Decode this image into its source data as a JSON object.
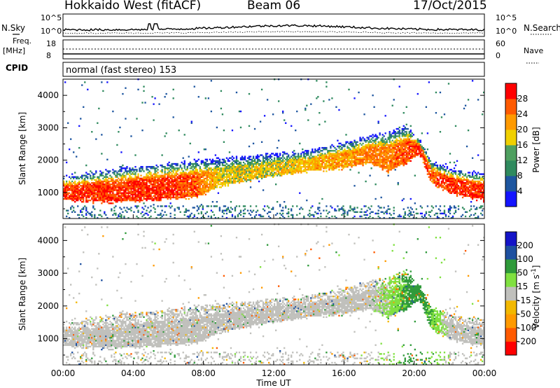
{
  "header": {
    "station": "Hokkaido West (fitACF)",
    "beam": "Beam 06",
    "date": "17/Oct/2015"
  },
  "top_strip": {
    "nsky_label": "N.Sky",
    "nsearch_label": "N.Search",
    "noise_left_ticks": [
      "10^5",
      "10^0"
    ],
    "noise_right_ticks": [
      "10^5",
      "10^0"
    ],
    "freq_label": "Freq.",
    "freq_unit": "[MHz]",
    "freq_ticks": [
      "18",
      "8"
    ],
    "nave_label": "Nave",
    "nave_ticks": [
      "60",
      "0"
    ],
    "cpid_label": "CPID",
    "cpid_text": "normal (fast stereo) 153"
  },
  "colors": {
    "power_scale": [
      "#1414ff",
      "#1e56a0",
      "#2f8a5e",
      "#4fa060",
      "#f0d000",
      "#ff9a00",
      "#ff5a00",
      "#ff0000"
    ],
    "velocity_scale": [
      "#ff0000",
      "#ff5a00",
      "#ff9a00",
      "#f2b800",
      "#c0c0bc",
      "#80e040",
      "#2f9a3a",
      "#1e50a0",
      "#1414c8"
    ]
  },
  "chart_data": [
    {
      "type": "heatmap",
      "title": "Power",
      "xlabel": "",
      "ylabel": "Slant Range [km]",
      "x_ticks": [
        "00:00",
        "04:00",
        "08:00",
        "12:00",
        "16:00",
        "20:00",
        "00:00"
      ],
      "xlim_hours": [
        0,
        24
      ],
      "y_ticks": [
        1000,
        2000,
        3000,
        4000
      ],
      "ylim": [
        200,
        4500
      ],
      "colorbar": {
        "label": "Power [dB]",
        "ticks": [
          "4",
          "8",
          "12",
          "16",
          "20",
          "24",
          "28"
        ],
        "range": [
          0,
          32
        ]
      },
      "band_profile": {
        "time_hours": [
          0,
          2,
          4,
          6,
          7.6,
          9,
          12,
          14,
          16,
          17.5,
          18.5,
          19.6,
          20.3,
          21,
          22,
          23,
          24
        ],
        "bottom_km": [
          750,
          700,
          720,
          800,
          850,
          1200,
          1500,
          1650,
          1750,
          1900,
          1650,
          1900,
          2200,
          1300,
          1000,
          850,
          750
        ],
        "top_km": [
          1450,
          1600,
          1750,
          1850,
          1950,
          2000,
          2150,
          2250,
          2500,
          2700,
          2800,
          3000,
          2600,
          1900,
          1700,
          1600,
          1550
        ],
        "peak_power_db": [
          28,
          28,
          28,
          28,
          26,
          18,
          18,
          20,
          22,
          24,
          24,
          26,
          28,
          26,
          28,
          28,
          28
        ]
      }
    },
    {
      "type": "heatmap",
      "title": "Velocity",
      "xlabel": "Time UT",
      "ylabel": "Slant Range [km]",
      "x_ticks": [
        "00:00",
        "04:00",
        "08:00",
        "12:00",
        "16:00",
        "20:00",
        "00:00"
      ],
      "xlim_hours": [
        0,
        24
      ],
      "y_ticks": [
        1000,
        2000,
        3000,
        4000
      ],
      "ylim": [
        200,
        4500
      ],
      "colorbar": {
        "label": "Velocity [m s^-1]",
        "ticks": [
          "200",
          "100",
          "50",
          "15",
          "-15",
          "-50",
          "-100",
          "-200"
        ],
        "range": [
          -250,
          250
        ]
      },
      "dominant_velocity_ms": [
        0,
        0,
        0,
        0,
        0,
        0,
        0,
        0,
        0,
        0,
        20,
        60,
        70,
        50,
        0,
        0,
        0
      ]
    }
  ]
}
